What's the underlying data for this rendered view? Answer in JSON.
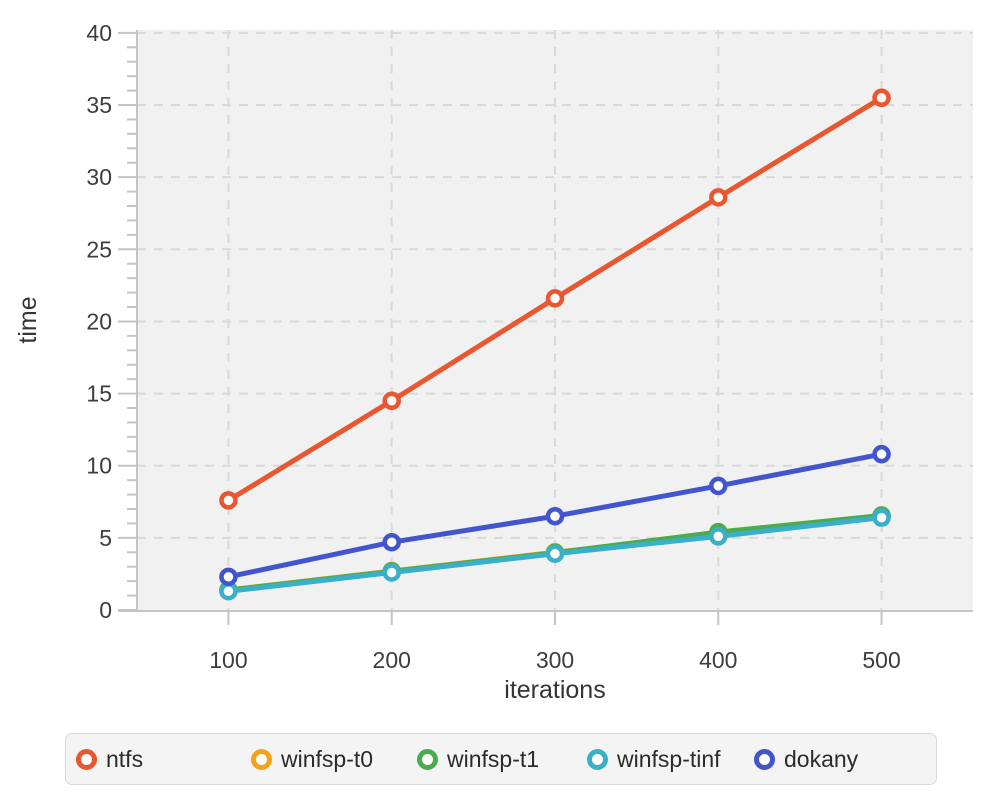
{
  "chart_data": {
    "type": "line",
    "title": "",
    "xlabel": "iterations",
    "ylabel": "time",
    "x": [
      100,
      200,
      300,
      400,
      500
    ],
    "x_tick_labels": [
      "100",
      "200",
      "300",
      "400",
      "500"
    ],
    "y_major_ticks": [
      0,
      5,
      10,
      15,
      20,
      25,
      30,
      35,
      40
    ],
    "y_minor_tick_step": 1,
    "xlim": [
      44,
      556
    ],
    "ylim": [
      0,
      40.2
    ],
    "grid": "dashed-major-both",
    "legend_position": "bottom",
    "marker": "open-circle",
    "series": [
      {
        "name": "ntfs",
        "color": "#e8572f",
        "values": [
          7.6,
          14.5,
          21.6,
          28.6,
          35.5
        ]
      },
      {
        "name": "winfsp-t0",
        "color": "#f3a21c",
        "values": [
          1.4,
          2.7,
          4.0,
          5.2,
          6.5
        ]
      },
      {
        "name": "winfsp-t1",
        "color": "#4cab4c",
        "values": [
          1.37,
          2.68,
          3.97,
          5.4,
          6.55
        ]
      },
      {
        "name": "winfsp-tinf",
        "color": "#3aafc9",
        "values": [
          1.3,
          2.6,
          3.9,
          5.1,
          6.4
        ]
      },
      {
        "name": "dokany",
        "color": "#4355cd",
        "values": [
          2.3,
          4.7,
          6.5,
          8.6,
          10.8
        ]
      }
    ]
  },
  "colors": {
    "plot_background": "#f1f1f2",
    "page_background": "#ffffff",
    "gridline": "#d9d9d9",
    "axis_line": "#c4c4c4",
    "tick": "#c4c4c4",
    "tick_label": "#3d3d3d",
    "legend_background": "#f4f4f5",
    "legend_border": "#d9d9d9"
  }
}
